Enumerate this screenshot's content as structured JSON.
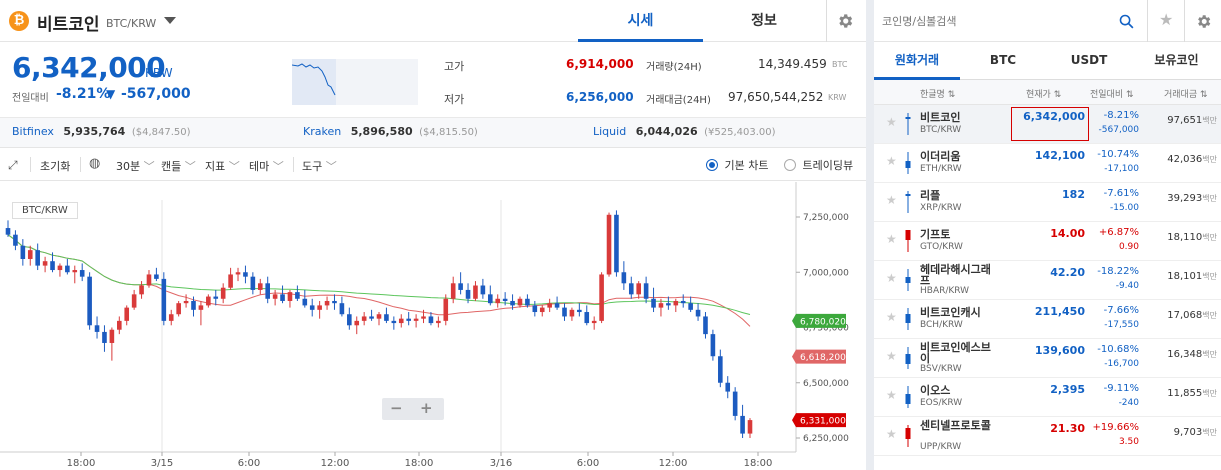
{
  "header": {
    "coin_name": "비트코인",
    "coin_pair": "BTC/KRW",
    "tabs": [
      "시세",
      "정보"
    ],
    "active_tab": "시세"
  },
  "price": {
    "current": "6,342,000",
    "unit": "KRW",
    "prev_label": "전일대비",
    "change_pct": "-8.21%",
    "change_arrow": "▼",
    "change_amt": "-567,000",
    "high_label": "고가",
    "high": "6,914,000",
    "low_label": "저가",
    "low": "6,256,000",
    "volume_label": "거래량(24H)",
    "volume": "14,349.459",
    "volume_unit": "BTC",
    "amount_label": "거래대금(24H)",
    "amount": "97,650,544,252",
    "amount_unit": "KRW"
  },
  "exchanges": [
    {
      "name": "Bitfinex",
      "price": "5,935,764",
      "sub": "($4,847.50)"
    },
    {
      "name": "Kraken",
      "price": "5,896,580",
      "sub": "($4,815.50)"
    },
    {
      "name": "Liquid",
      "price": "6,044,026",
      "sub": "(¥525,403.00)"
    }
  ],
  "toolbar": {
    "reset": "초기화",
    "interval": "30분",
    "candle": "캔들",
    "indicator": "지표",
    "theme": "테마",
    "tools": "도구",
    "basic_chart": "기본 차트",
    "tradingview": "트레이딩뷰"
  },
  "chart": {
    "pair_label": "BTC/KRW",
    "y_ticks": [
      "7,250,000",
      "7,000,000",
      "6,750,000",
      "6,500,000",
      "6,250,000"
    ],
    "x_ticks": [
      "18:00",
      "3/15",
      "6:00",
      "12:00",
      "18:00",
      "3/16",
      "6:00",
      "12:00",
      "18:00"
    ],
    "badges": [
      {
        "value": "6,780,020",
        "color": "#3ca83c"
      },
      {
        "value": "6,618,200",
        "color": "#e06666"
      },
      {
        "value": "6,331,000",
        "color": "#d60000"
      }
    ],
    "zoom_minus": "−",
    "zoom_plus": "+"
  },
  "sidebar": {
    "search_placeholder": "코인명/심볼검색",
    "market_tabs": [
      "원화거래",
      "BTC",
      "USDT",
      "보유코인"
    ],
    "active_market": "원화거래",
    "col_headers": [
      "한글명 ⇅",
      "현재가 ⇅",
      "전일대비 ⇅",
      "거래대금 ⇅"
    ],
    "coins": [
      {
        "name": "비트코인",
        "sym": "BTC/KRW",
        "price": "6,342,000",
        "pct": "-8.21%",
        "chg": "-567,000",
        "vol": "97,651",
        "unit": "백만",
        "dir": "down"
      },
      {
        "name": "이더리움",
        "sym": "ETH/KRW",
        "price": "142,100",
        "pct": "-10.74%",
        "chg": "-17,100",
        "vol": "42,036",
        "unit": "백만",
        "dir": "down"
      },
      {
        "name": "리플",
        "sym": "XRP/KRW",
        "price": "182",
        "pct": "-7.61%",
        "chg": "-15.00",
        "vol": "39,293",
        "unit": "백만",
        "dir": "down"
      },
      {
        "name": "기프토",
        "sym": "GTO/KRW",
        "price": "14.00",
        "pct": "+6.87%",
        "chg": "0.90",
        "vol": "18,110",
        "unit": "백만",
        "dir": "up"
      },
      {
        "name": "헤데라해시그래프",
        "sym": "HBAR/KRW",
        "price": "42.20",
        "pct": "-18.22%",
        "chg": "-9.40",
        "vol": "18,101",
        "unit": "백만",
        "dir": "down"
      },
      {
        "name": "비트코인캐시",
        "sym": "BCH/KRW",
        "price": "211,450",
        "pct": "-7.66%",
        "chg": "-17,550",
        "vol": "17,068",
        "unit": "백만",
        "dir": "down"
      },
      {
        "name": "비트코인에스브이",
        "sym": "BSV/KRW",
        "price": "139,600",
        "pct": "-10.68%",
        "chg": "-16,700",
        "vol": "16,348",
        "unit": "백만",
        "dir": "down"
      },
      {
        "name": "이오스",
        "sym": "EOS/KRW",
        "price": "2,395",
        "pct": "-9.11%",
        "chg": "-240",
        "vol": "11,855",
        "unit": "백만",
        "dir": "down"
      },
      {
        "name": "센티넬프로토콜",
        "sym": "UPP/KRW",
        "price": "21.30",
        "pct": "+19.66%",
        "chg": "3.50",
        "vol": "9,703",
        "unit": "백만",
        "dir": "up"
      }
    ]
  },
  "colors": {
    "up": "#d60000",
    "down": "#1261c4",
    "accent": "#1261c4"
  }
}
